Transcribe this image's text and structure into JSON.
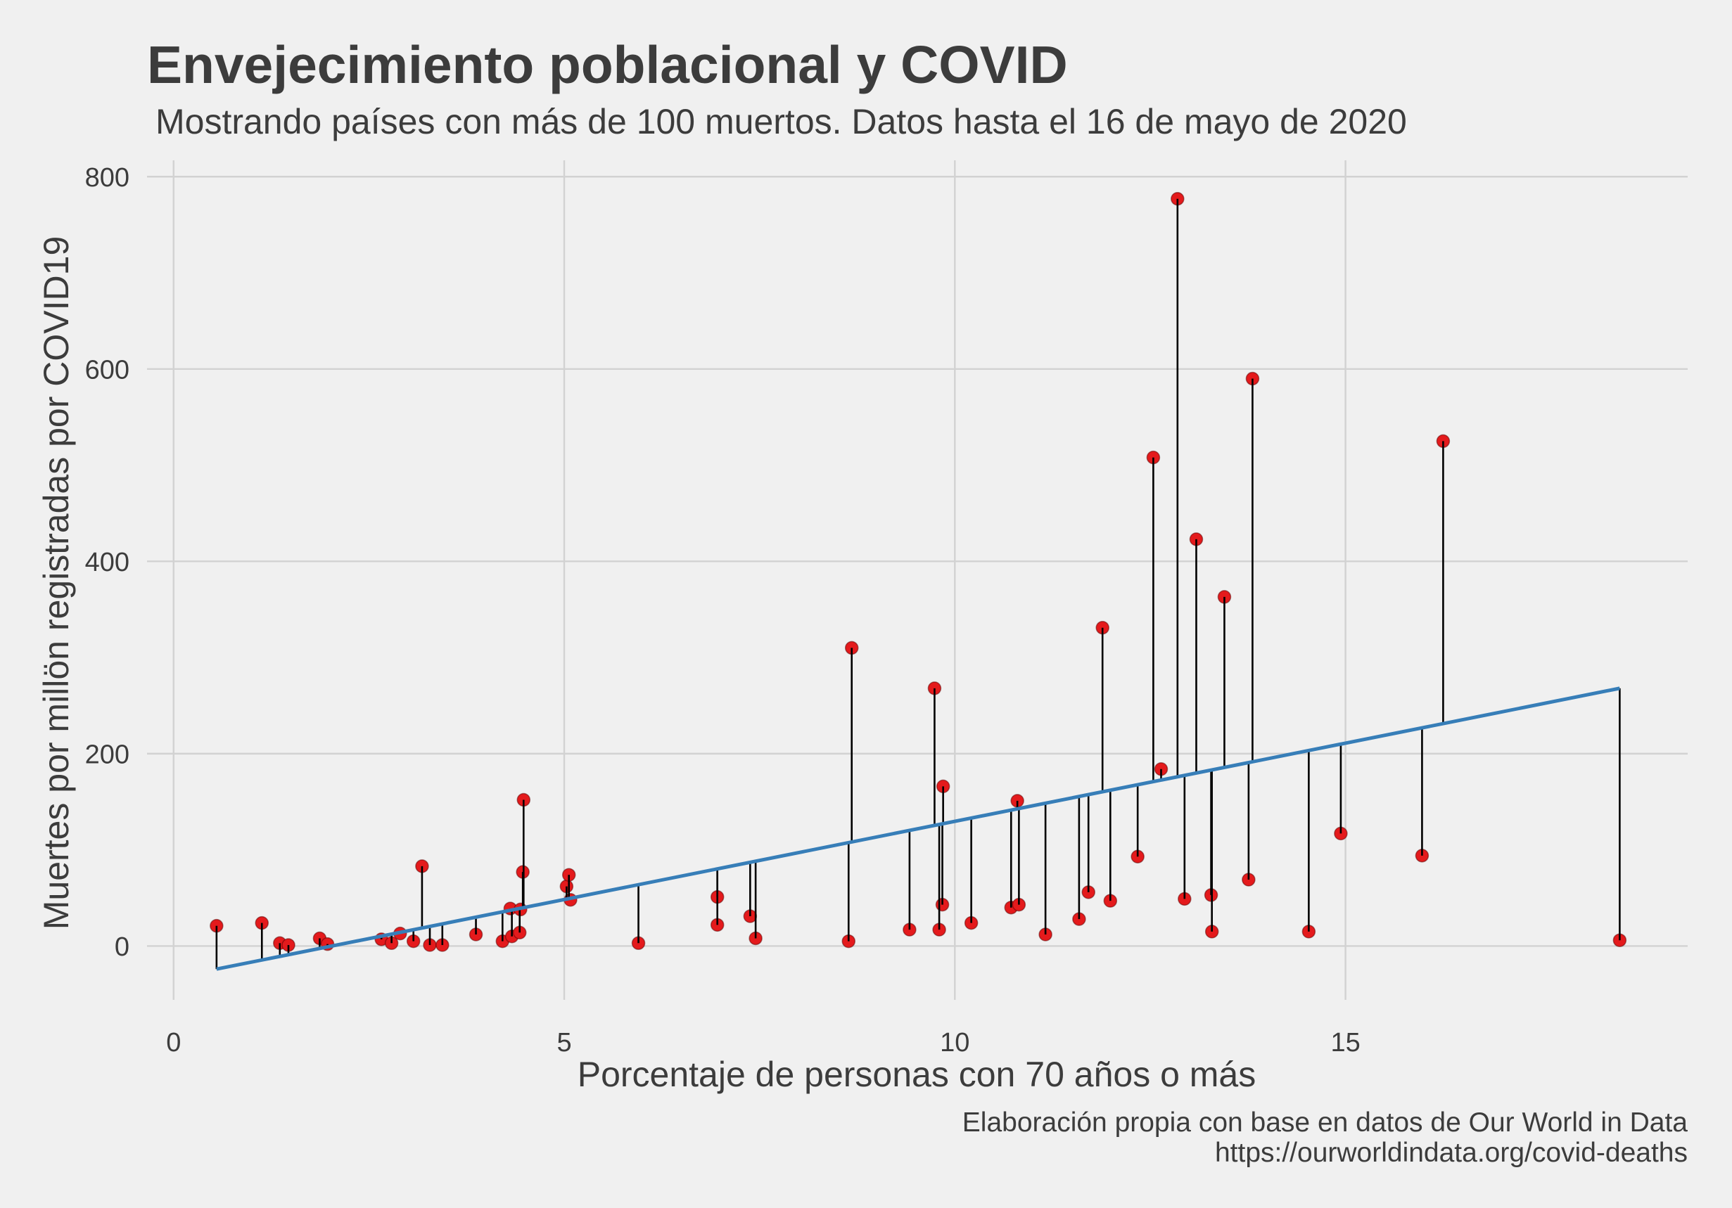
{
  "chart_data": {
    "type": "scatter",
    "title": "Envejecimiento poblacional y COVID",
    "subtitle": "Mostrando países con más de 100 muertos. Datos hasta el 16 de mayo de 2020",
    "xlabel": "Porcentaje de personas con 70 años o más",
    "ylabel": "Muertes por millön registradas por COVID19",
    "caption": [
      "Elaboración propia con base en datos de Our World in Data",
      "https://ourworldindata.org/covid-deaths"
    ],
    "xticks": [
      0,
      5,
      10,
      15
    ],
    "yticks": [
      0,
      200,
      400,
      600,
      800
    ],
    "xlim": [
      -0.34,
      19.38
    ],
    "ylim": [
      -56,
      817
    ],
    "grid": true,
    "points": [
      {
        "x": 0.55,
        "y": 21
      },
      {
        "x": 1.13,
        "y": 24
      },
      {
        "x": 1.36,
        "y": 3
      },
      {
        "x": 1.47,
        "y": 1
      },
      {
        "x": 1.87,
        "y": 8
      },
      {
        "x": 1.97,
        "y": 2
      },
      {
        "x": 2.66,
        "y": 7
      },
      {
        "x": 2.79,
        "y": 3
      },
      {
        "x": 2.9,
        "y": 13
      },
      {
        "x": 3.07,
        "y": 5
      },
      {
        "x": 3.18,
        "y": 83
      },
      {
        "x": 3.28,
        "y": 1
      },
      {
        "x": 3.44,
        "y": 1
      },
      {
        "x": 3.87,
        "y": 12
      },
      {
        "x": 4.21,
        "y": 5
      },
      {
        "x": 4.31,
        "y": 39
      },
      {
        "x": 4.33,
        "y": 10
      },
      {
        "x": 4.43,
        "y": 14
      },
      {
        "x": 4.44,
        "y": 38
      },
      {
        "x": 4.47,
        "y": 77
      },
      {
        "x": 4.48,
        "y": 152
      },
      {
        "x": 5.03,
        "y": 62
      },
      {
        "x": 5.06,
        "y": 74
      },
      {
        "x": 5.08,
        "y": 48
      },
      {
        "x": 5.95,
        "y": 3
      },
      {
        "x": 6.96,
        "y": 51
      },
      {
        "x": 6.96,
        "y": 22
      },
      {
        "x": 7.38,
        "y": 31
      },
      {
        "x": 7.45,
        "y": 8
      },
      {
        "x": 8.64,
        "y": 5
      },
      {
        "x": 8.68,
        "y": 310
      },
      {
        "x": 9.42,
        "y": 17
      },
      {
        "x": 9.74,
        "y": 268
      },
      {
        "x": 9.8,
        "y": 17
      },
      {
        "x": 9.84,
        "y": 43
      },
      {
        "x": 9.85,
        "y": 166
      },
      {
        "x": 10.21,
        "y": 24
      },
      {
        "x": 10.72,
        "y": 40
      },
      {
        "x": 10.8,
        "y": 151
      },
      {
        "x": 10.82,
        "y": 43
      },
      {
        "x": 11.16,
        "y": 12
      },
      {
        "x": 11.59,
        "y": 28
      },
      {
        "x": 11.71,
        "y": 56
      },
      {
        "x": 11.89,
        "y": 331
      },
      {
        "x": 11.99,
        "y": 47
      },
      {
        "x": 12.34,
        "y": 93
      },
      {
        "x": 12.54,
        "y": 508
      },
      {
        "x": 12.64,
        "y": 184
      },
      {
        "x": 12.85,
        "y": 777
      },
      {
        "x": 12.94,
        "y": 49
      },
      {
        "x": 13.09,
        "y": 423
      },
      {
        "x": 13.28,
        "y": 53
      },
      {
        "x": 13.29,
        "y": 15
      },
      {
        "x": 13.45,
        "y": 363
      },
      {
        "x": 13.76,
        "y": 69
      },
      {
        "x": 13.81,
        "y": 590
      },
      {
        "x": 14.53,
        "y": 15
      },
      {
        "x": 14.94,
        "y": 117
      },
      {
        "x": 15.98,
        "y": 94
      },
      {
        "x": 16.25,
        "y": 525
      },
      {
        "x": 18.51,
        "y": 6
      }
    ],
    "trend_line": {
      "x": [
        0.55,
        18.51
      ],
      "y": [
        -24,
        268
      ]
    },
    "segments_to_trend_line": true,
    "colors": {
      "background": "#F0F0F0",
      "text": "#3C3C3C",
      "grid": "#D2D2D2",
      "points": "#E41A1C",
      "segments": "#000000",
      "trend_line": "#377EB8"
    }
  }
}
